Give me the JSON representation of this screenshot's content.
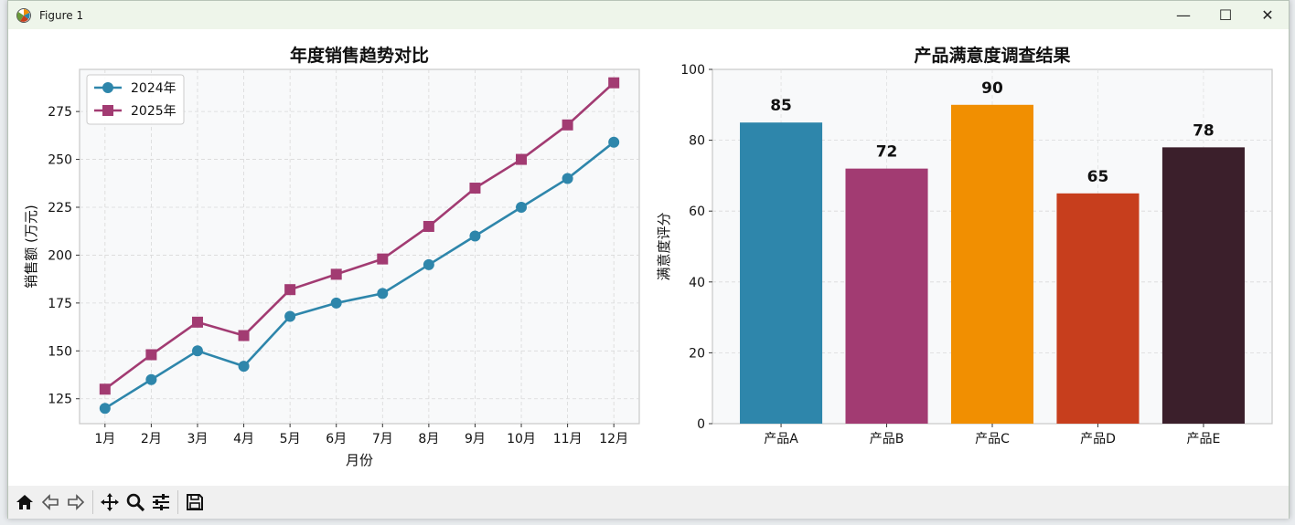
{
  "window": {
    "title": "Figure 1",
    "minimize_glyph": "—",
    "maximize_glyph": "☐",
    "close_glyph": "✕"
  },
  "toolbar": {
    "icons": [
      "home-icon",
      "back-arrow-icon",
      "forward-arrow-icon",
      "pan-icon",
      "zoom-icon",
      "configure-subplots-icon",
      "save-icon"
    ]
  },
  "colors": {
    "series_2024": "#2e86ab",
    "series_2025": "#a23b72",
    "plot_bg": "#f8f9fa",
    "bars": [
      "#2e86ab",
      "#a23b72",
      "#f18f01",
      "#c73e1d",
      "#3b1f2b"
    ]
  },
  "chart_data": [
    {
      "type": "line",
      "title": "年度销售趋势对比",
      "xlabel": "月份",
      "ylabel": "销售额 (万元)",
      "categories": [
        "1月",
        "2月",
        "3月",
        "4月",
        "5月",
        "6月",
        "7月",
        "8月",
        "9月",
        "10月",
        "11月",
        "12月"
      ],
      "series": [
        {
          "name": "2024年",
          "marker": "circle",
          "values": [
            120,
            135,
            150,
            142,
            168,
            175,
            180,
            195,
            210,
            225,
            240,
            259
          ]
        },
        {
          "name": "2025年",
          "marker": "square",
          "values": [
            130,
            148,
            165,
            158,
            182,
            190,
            198,
            215,
            235,
            250,
            268,
            290
          ]
        }
      ],
      "ylim": [
        112,
        297
      ],
      "yticks": [
        125,
        150,
        175,
        200,
        225,
        250,
        275
      ],
      "grid": true,
      "legend": "top-left"
    },
    {
      "type": "bar",
      "title": "产品满意度调查结果",
      "xlabel": "",
      "ylabel": "满意度评分",
      "categories": [
        "产品A",
        "产品B",
        "产品C",
        "产品D",
        "产品E"
      ],
      "values": [
        85,
        72,
        90,
        65,
        78
      ],
      "data_labels": [
        "85",
        "72",
        "90",
        "65",
        "78"
      ],
      "ylim": [
        0,
        100
      ],
      "yticks": [
        0,
        20,
        40,
        60,
        80,
        100
      ],
      "grid": true
    }
  ]
}
